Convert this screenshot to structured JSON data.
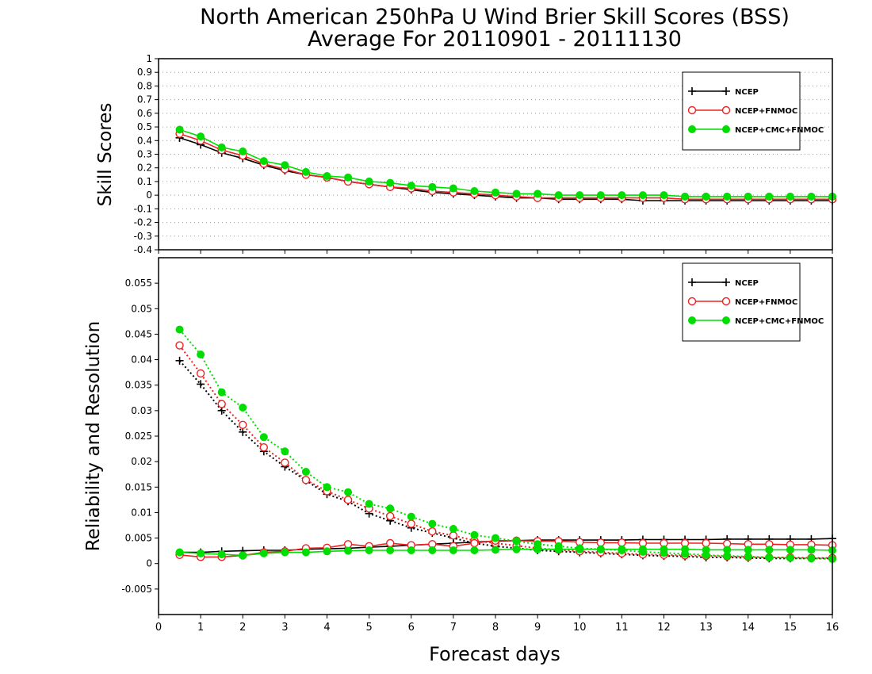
{
  "title_line1": "North American 250hPa U Wind Brier Skill Scores (BSS)",
  "title_line2": "Average For 20110901 - 20111130",
  "xlabel": "Forecast days",
  "colors": {
    "ncep": "#000000",
    "fnmoc": "#ee2222",
    "cmc": "#00dd00"
  },
  "chart_data": [
    {
      "type": "line",
      "ylabel": "Skill Scores",
      "xlim": [
        0,
        16
      ],
      "ylim": [
        -0.4,
        1
      ],
      "x_ticks": [
        0,
        1,
        2,
        3,
        4,
        5,
        6,
        7,
        8,
        9,
        10,
        11,
        12,
        13,
        14,
        15,
        16
      ],
      "y_ticks": [
        "1",
        "0.9",
        "0.8",
        "0.7",
        "0.6",
        "0.5",
        "0.4",
        "0.3",
        "0.2",
        "0.1",
        "0",
        "-0.1",
        "-0.2",
        "-0.3",
        "-0.4"
      ],
      "grid": true,
      "legend_position": "top-right",
      "x": [
        0.5,
        1,
        1.5,
        2,
        2.5,
        3,
        3.5,
        4,
        4.5,
        5,
        5.5,
        6,
        6.5,
        7,
        7.5,
        8,
        8.5,
        9,
        9.5,
        10,
        10.5,
        11,
        11.5,
        12,
        12.5,
        13,
        13.5,
        14,
        14.5,
        15,
        15.5,
        16
      ],
      "series": [
        {
          "name": "NCEP",
          "marker": "plus",
          "color": "#000000",
          "values": [
            0.42,
            0.37,
            0.31,
            0.27,
            0.22,
            0.18,
            0.15,
            0.13,
            0.1,
            0.08,
            0.06,
            0.04,
            0.02,
            0.01,
            0.0,
            -0.01,
            -0.02,
            -0.02,
            -0.03,
            -0.03,
            -0.03,
            -0.03,
            -0.04,
            -0.04,
            -0.04,
            -0.04,
            -0.04,
            -0.04,
            -0.04,
            -0.04,
            -0.04,
            -0.04
          ]
        },
        {
          "name": "NCEP+FNMOC",
          "marker": "open-circle",
          "color": "#ee2222",
          "values": [
            0.45,
            0.4,
            0.33,
            0.29,
            0.23,
            0.19,
            0.15,
            0.13,
            0.1,
            0.08,
            0.06,
            0.05,
            0.03,
            0.02,
            0.01,
            0.0,
            -0.01,
            -0.02,
            -0.02,
            -0.02,
            -0.02,
            -0.02,
            -0.02,
            -0.02,
            -0.03,
            -0.03,
            -0.03,
            -0.03,
            -0.03,
            -0.03,
            -0.03,
            -0.03
          ]
        },
        {
          "name": "NCEP+CMC+FNMOC",
          "marker": "filled-circle",
          "color": "#00dd00",
          "values": [
            0.48,
            0.43,
            0.35,
            0.32,
            0.25,
            0.22,
            0.17,
            0.14,
            0.13,
            0.1,
            0.09,
            0.07,
            0.06,
            0.05,
            0.03,
            0.02,
            0.01,
            0.01,
            0.0,
            0.0,
            0.0,
            0.0,
            0.0,
            0.0,
            -0.01,
            -0.01,
            -0.01,
            -0.01,
            -0.01,
            -0.01,
            -0.01,
            -0.01
          ]
        }
      ]
    },
    {
      "type": "line",
      "ylabel": "Reliability and Resolution",
      "xlim": [
        0,
        16
      ],
      "ylim": [
        -0.01,
        0.06
      ],
      "x_ticks": [
        0,
        1,
        2,
        3,
        4,
        5,
        6,
        7,
        8,
        9,
        10,
        11,
        12,
        13,
        14,
        15,
        16
      ],
      "y_ticks": [
        "0.055",
        "0.05",
        "0.045",
        "0.04",
        "0.035",
        "0.03",
        "0.025",
        "0.02",
        "0.015",
        "0.01",
        "0.005",
        "0",
        "-0.005"
      ],
      "grid": false,
      "legend_position": "top-right",
      "x": [
        0.5,
        1,
        1.5,
        2,
        2.5,
        3,
        3.5,
        4,
        4.5,
        5,
        5.5,
        6,
        6.5,
        7,
        7.5,
        8,
        8.5,
        9,
        9.5,
        10,
        10.5,
        11,
        11.5,
        12,
        12.5,
        13,
        13.5,
        14,
        14.5,
        15,
        15.5,
        16
      ],
      "series": [
        {
          "name": "NCEP",
          "role": "resolution",
          "style": "dotted",
          "marker": "plus",
          "color": "#000000",
          "values": [
            0.0398,
            0.0352,
            0.03,
            0.0258,
            0.022,
            0.019,
            0.0163,
            0.0136,
            0.0122,
            0.0098,
            0.0084,
            0.007,
            0.006,
            0.005,
            0.004,
            0.0034,
            0.003,
            0.0026,
            0.0024,
            0.0022,
            0.002,
            0.0018,
            0.0016,
            0.0015,
            0.0014,
            0.0012,
            0.0012,
            0.0011,
            0.001,
            0.001,
            0.001,
            0.001
          ]
        },
        {
          "name": "NCEP",
          "role": "reliability",
          "style": "solid",
          "marker": "plus",
          "color": "#000000",
          "values": [
            0.0022,
            0.0022,
            0.0024,
            0.0025,
            0.0026,
            0.0026,
            0.0028,
            0.0029,
            0.003,
            0.0032,
            0.0034,
            0.0036,
            0.0038,
            0.004,
            0.0042,
            0.0044,
            0.0045,
            0.0046,
            0.0046,
            0.0046,
            0.0046,
            0.0046,
            0.0047,
            0.0047,
            0.0047,
            0.0047,
            0.0048,
            0.0048,
            0.0048,
            0.0048,
            0.0048,
            0.0049
          ]
        },
        {
          "name": "NCEP+FNMOC",
          "role": "resolution",
          "style": "dotted",
          "marker": "open-circle",
          "color": "#ee2222",
          "values": [
            0.0428,
            0.0373,
            0.0313,
            0.0272,
            0.0228,
            0.0198,
            0.0164,
            0.0142,
            0.0125,
            0.0108,
            0.0093,
            0.0078,
            0.0063,
            0.0055,
            0.0045,
            0.004,
            0.0035,
            0.003,
            0.0027,
            0.0024,
            0.0022,
            0.002,
            0.0018,
            0.0017,
            0.0016,
            0.0015,
            0.0014,
            0.0013,
            0.0012,
            0.0012,
            0.0011,
            0.0011
          ]
        },
        {
          "name": "NCEP+FNMOC",
          "role": "reliability",
          "style": "solid",
          "marker": "open-circle",
          "color": "#ee2222",
          "values": [
            0.0017,
            0.0013,
            0.0013,
            0.0016,
            0.0022,
            0.0024,
            0.003,
            0.0031,
            0.0038,
            0.0034,
            0.004,
            0.0036,
            0.0038,
            0.0034,
            0.004,
            0.0045,
            0.0045,
            0.0044,
            0.0044,
            0.0042,
            0.0041,
            0.0041,
            0.004,
            0.004,
            0.004,
            0.004,
            0.0039,
            0.0038,
            0.0038,
            0.0037,
            0.0037,
            0.0036
          ]
        },
        {
          "name": "NCEP+CMC+FNMOC",
          "role": "resolution",
          "style": "dotted",
          "marker": "filled-circle",
          "color": "#00dd00",
          "values": [
            0.0459,
            0.041,
            0.0336,
            0.0306,
            0.0248,
            0.022,
            0.018,
            0.015,
            0.014,
            0.0117,
            0.0108,
            0.0092,
            0.0078,
            0.0068,
            0.0056,
            0.005,
            0.0044,
            0.0038,
            0.0034,
            0.003,
            0.0028,
            0.0026,
            0.0023,
            0.0021,
            0.0019,
            0.0017,
            0.0015,
            0.0014,
            0.0012,
            0.0011,
            0.001,
            0.0009
          ]
        },
        {
          "name": "NCEP+CMC+FNMOC",
          "role": "reliability",
          "style": "solid",
          "marker": "filled-circle",
          "color": "#00dd00",
          "values": [
            0.0022,
            0.002,
            0.0018,
            0.0016,
            0.002,
            0.0022,
            0.0022,
            0.0024,
            0.0025,
            0.0026,
            0.0026,
            0.0026,
            0.0026,
            0.0026,
            0.0026,
            0.0027,
            0.0028,
            0.0028,
            0.0028,
            0.0028,
            0.0028,
            0.0028,
            0.0028,
            0.0028,
            0.0028,
            0.0027,
            0.0027,
            0.0027,
            0.0027,
            0.0027,
            0.0027,
            0.0026
          ]
        }
      ]
    }
  ]
}
